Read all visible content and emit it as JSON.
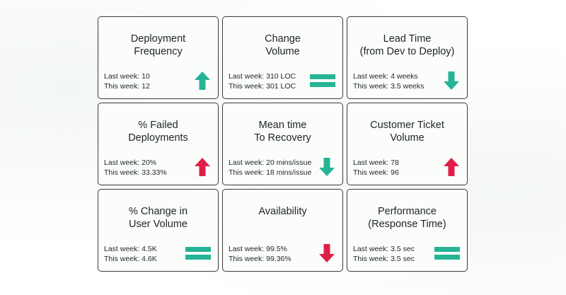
{
  "colors": {
    "up_good": "#26b496",
    "up_bad": "#e01e4a",
    "down_good": "#26b496",
    "down_bad": "#e01e4a",
    "equal": "#26b496"
  },
  "cards": [
    {
      "title_line1": "Deployment",
      "title_line2": "Frequency",
      "last_week": "Last week: 10",
      "this_week": "This week: 12",
      "indicator": "arrow-up-icon",
      "indicator_color": "#26b496"
    },
    {
      "title_line1": "Change",
      "title_line2": "Volume",
      "last_week": "Last week: 310 LOC",
      "this_week": "This week: 301 LOC",
      "indicator": "equals-icon",
      "indicator_color": "#26b496"
    },
    {
      "title_line1": "Lead Time",
      "title_line2": "(from Dev to Deploy)",
      "last_week": "Last week: 4 weeks",
      "this_week": "This week: 3.5 weeks",
      "indicator": "arrow-down-icon",
      "indicator_color": "#26b496"
    },
    {
      "title_line1": "% Failed",
      "title_line2": "Deployments",
      "last_week": "Last week: 20%",
      "this_week": "This week: 33.33%",
      "indicator": "arrow-up-icon",
      "indicator_color": "#e01e4a"
    },
    {
      "title_line1": "Mean time",
      "title_line2": "To Recovery",
      "last_week": "Last week: 20 mins/issue",
      "this_week": "This week: 18 mins/issue",
      "indicator": "arrow-down-icon",
      "indicator_color": "#26b496"
    },
    {
      "title_line1": "Customer Ticket",
      "title_line2": "Volume",
      "last_week": "Last week: 78",
      "this_week": "This week: 96",
      "indicator": "arrow-up-icon",
      "indicator_color": "#e01e4a"
    },
    {
      "title_line1": "% Change in",
      "title_line2": "User Volume",
      "last_week": "Last week: 4.5K",
      "this_week": "This week: 4.6K",
      "indicator": "equals-icon",
      "indicator_color": "#26b496"
    },
    {
      "title_line1": "Availability",
      "title_line2": "",
      "last_week": "Last week: 99.5%",
      "this_week": "This week: 99.36%",
      "indicator": "arrow-down-icon",
      "indicator_color": "#e01e4a"
    },
    {
      "title_line1": "Performance",
      "title_line2": "(Response Time)",
      "last_week": "Last week: 3.5 sec",
      "this_week": "This week: 3.5 sec",
      "indicator": "equals-icon",
      "indicator_color": "#26b496"
    }
  ]
}
